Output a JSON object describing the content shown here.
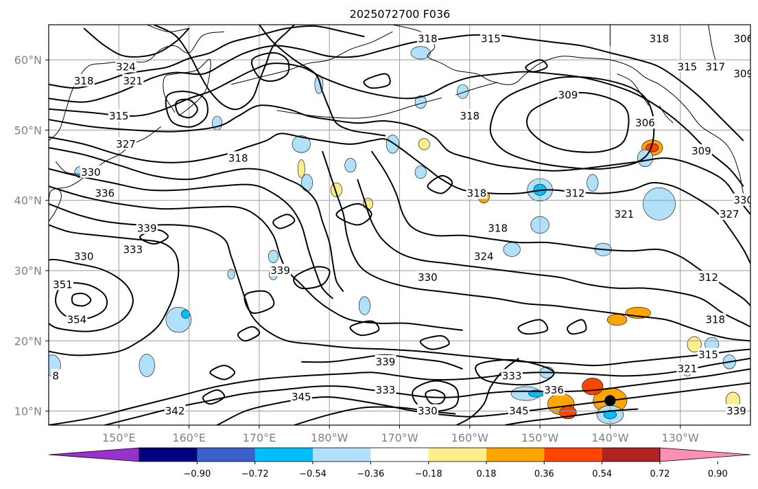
{
  "chart_data": {
    "type": "contour",
    "title": "2025072700 F036",
    "map": {
      "lon_range": [
        140,
        240
      ],
      "lat_range": [
        8,
        65
      ],
      "lat_ticks": [
        {
          "value": 10,
          "label": "10°N"
        },
        {
          "value": 20,
          "label": "20°N"
        },
        {
          "value": 30,
          "label": "30°N"
        },
        {
          "value": 40,
          "label": "40°N"
        },
        {
          "value": 50,
          "label": "50°N"
        },
        {
          "value": 60,
          "label": "60°N"
        }
      ],
      "lon_ticks": [
        {
          "value": 150,
          "label": "150°E"
        },
        {
          "value": 160,
          "label": "160°E"
        },
        {
          "value": 170,
          "label": "170°E"
        },
        {
          "value": 180,
          "label": "180°W"
        },
        {
          "value": 190,
          "label": "170°W"
        },
        {
          "value": 200,
          "label": "160°W"
        },
        {
          "value": 210,
          "label": "150°W"
        },
        {
          "value": 220,
          "label": "140°W"
        },
        {
          "value": 230,
          "label": "130°W"
        }
      ],
      "grid": true
    },
    "contour_labels": [
      {
        "text": "315",
        "lon": 203,
        "lat": 63
      },
      {
        "text": "318",
        "lon": 194,
        "lat": 63
      },
      {
        "text": "318",
        "lon": 227,
        "lat": 63
      },
      {
        "text": "315",
        "lon": 231,
        "lat": 59
      },
      {
        "text": "317",
        "lon": 235,
        "lat": 59
      },
      {
        "text": "306",
        "lon": 239,
        "lat": 63
      },
      {
        "text": "309",
        "lon": 239,
        "lat": 58
      },
      {
        "text": "324",
        "lon": 151,
        "lat": 59
      },
      {
        "text": "321",
        "lon": 152,
        "lat": 57
      },
      {
        "text": "318",
        "lon": 145,
        "lat": 57
      },
      {
        "text": "315",
        "lon": 150,
        "lat": 52
      },
      {
        "text": "327",
        "lon": 151,
        "lat": 48
      },
      {
        "text": "318",
        "lon": 167,
        "lat": 46
      },
      {
        "text": "309",
        "lon": 214,
        "lat": 55
      },
      {
        "text": "306",
        "lon": 225,
        "lat": 51
      },
      {
        "text": "309",
        "lon": 233,
        "lat": 47
      },
      {
        "text": "318",
        "lon": 200,
        "lat": 52
      },
      {
        "text": "312",
        "lon": 215,
        "lat": 41
      },
      {
        "text": "318",
        "lon": 201,
        "lat": 41
      },
      {
        "text": "318",
        "lon": 204,
        "lat": 36
      },
      {
        "text": "321",
        "lon": 222,
        "lat": 38
      },
      {
        "text": "324",
        "lon": 202,
        "lat": 32
      },
      {
        "text": "330",
        "lon": 194,
        "lat": 29
      },
      {
        "text": "339",
        "lon": 154,
        "lat": 36
      },
      {
        "text": "333",
        "lon": 152,
        "lat": 33
      },
      {
        "text": "339",
        "lon": 173,
        "lat": 30
      },
      {
        "text": "336",
        "lon": 148,
        "lat": 41
      },
      {
        "text": "330",
        "lon": 146,
        "lat": 44
      },
      {
        "text": "330",
        "lon": 145,
        "lat": 32
      },
      {
        "text": "351",
        "lon": 142,
        "lat": 28
      },
      {
        "text": "354",
        "lon": 144,
        "lat": 23
      },
      {
        "text": "312",
        "lon": 234,
        "lat": 29
      },
      {
        "text": "318",
        "lon": 235,
        "lat": 23
      },
      {
        "text": "315",
        "lon": 234,
        "lat": 18
      },
      {
        "text": "321",
        "lon": 231,
        "lat": 16
      },
      {
        "text": "330",
        "lon": 239,
        "lat": 40
      },
      {
        "text": "327",
        "lon": 237,
        "lat": 38
      },
      {
        "text": "339",
        "lon": 188,
        "lat": 17
      },
      {
        "text": "333",
        "lon": 188,
        "lat": 13
      },
      {
        "text": "330",
        "lon": 194,
        "lat": 10
      },
      {
        "text": "345",
        "lon": 176,
        "lat": 12
      },
      {
        "text": "342",
        "lon": 158,
        "lat": 10
      },
      {
        "text": "333",
        "lon": 206,
        "lat": 15
      },
      {
        "text": "336",
        "lon": 212,
        "lat": 13
      },
      {
        "text": "345",
        "lon": 207,
        "lat": 10
      },
      {
        "text": "339",
        "lon": 238,
        "lat": 10
      },
      {
        "text": "8",
        "lon": 141,
        "lat": 15
      }
    ],
    "marker": {
      "lon": 220,
      "lat": 11.5,
      "color": "#000000"
    },
    "colorbar": {
      "colors": [
        "#9932cc",
        "#000080",
        "#3b5fcd",
        "#00bfff",
        "#b0e0fa",
        "#ffffff",
        "#ffee8c",
        "#ffa500",
        "#ff4500",
        "#b22222",
        "#ff8fb3"
      ],
      "tick_labels": [
        "-0.90",
        "-0.72",
        "-0.54",
        "-0.36",
        "-0.18",
        "0.18",
        "0.36",
        "0.54",
        "0.72",
        "0.90"
      ],
      "extend": "both"
    }
  }
}
